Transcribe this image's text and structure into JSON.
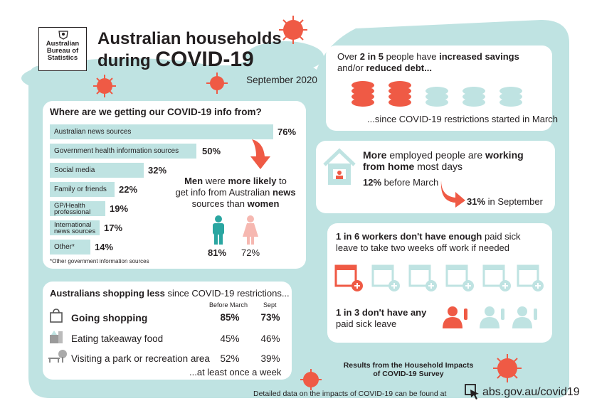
{
  "header": {
    "org_line1": "Australian",
    "org_line2": "Bureau of",
    "org_line3": "Statistics",
    "title_line1": "Australian households",
    "title_line2_prefix": "during ",
    "title_line2_bold": "COVID-19",
    "date": "September 2020"
  },
  "info_sources": {
    "title": "Where are we getting our COVID-19 info from?",
    "bars": [
      {
        "label": "Australian news sources",
        "value": 76,
        "display": "76%"
      },
      {
        "label": "Government health information sources",
        "value": 50,
        "display": "50%"
      },
      {
        "label": "Social media",
        "value": 32,
        "display": "32%"
      },
      {
        "label": "Family or friends",
        "value": 22,
        "display": "22%"
      },
      {
        "label_line1": "GP/Health",
        "label_line2": "professional",
        "value": 19,
        "display": "19%"
      },
      {
        "label_line1": "International",
        "label_line2": "news sources",
        "value": 17,
        "display": "17%"
      },
      {
        "label": "Other*",
        "value": 14,
        "display": "14%"
      }
    ],
    "footnote": "*Other government information sources",
    "men_line1_a": "Men",
    "men_line1_b": " were ",
    "men_line1_c": "more likely",
    "men_line1_d": " to",
    "men_line2_a": "get info from Australian ",
    "men_line2_b": "news",
    "men_line3_a": "sources than ",
    "men_line3_b": "women",
    "men_pct": "81%",
    "women_pct": "72%",
    "colors": {
      "teal": "#bfe3e2",
      "coral": "#ef5a45",
      "pink": "#f6b8b1",
      "teal_dark": "#2aa6a1"
    }
  },
  "shopping": {
    "title_bold": "Australians shopping less",
    "title_rest": " since COVID-19 restrictions...",
    "col1": "Before March",
    "col2": "Sept",
    "rows": [
      {
        "label": "Going shopping",
        "before": "85%",
        "sept": "73%"
      },
      {
        "label": "Eating takeaway food",
        "before": "45%",
        "sept": "46%"
      },
      {
        "label": "Visiting a park or recreation area",
        "before": "52%",
        "sept": "39%"
      }
    ],
    "footer": "...at least once a week"
  },
  "savings": {
    "line1_a": "Over ",
    "line1_b": "2 in 5",
    "line1_c": " people have ",
    "line1_d": "increased savings",
    "line2_a": "and/or ",
    "line2_b": "reduced debt...",
    "footer": "...since COVID-19 restrictions started in March"
  },
  "wfh": {
    "line1_a": "More",
    "line1_b": " employed people are ",
    "line1_c": "working",
    "line2_a": "from home",
    "line2_b": " most days",
    "before_pct": "12%",
    "before_text": " before March",
    "after_pct": "31%",
    "after_text": " in September"
  },
  "sick_leave": {
    "line1_a": "1 in 6 workers don't have enough",
    "line1_b": " paid sick",
    "line2": "leave to take two weeks off work if needed",
    "line3": "1 in 3 don't have any",
    "line4": "paid sick leave"
  },
  "footer": {
    "results_line1": "Results from the Household Impacts",
    "results_line2": "of COVID-19 Survey",
    "detail": "Detailed data on the impacts of COVID-19 can be found at",
    "url": "abs.gov.au/covid19"
  }
}
